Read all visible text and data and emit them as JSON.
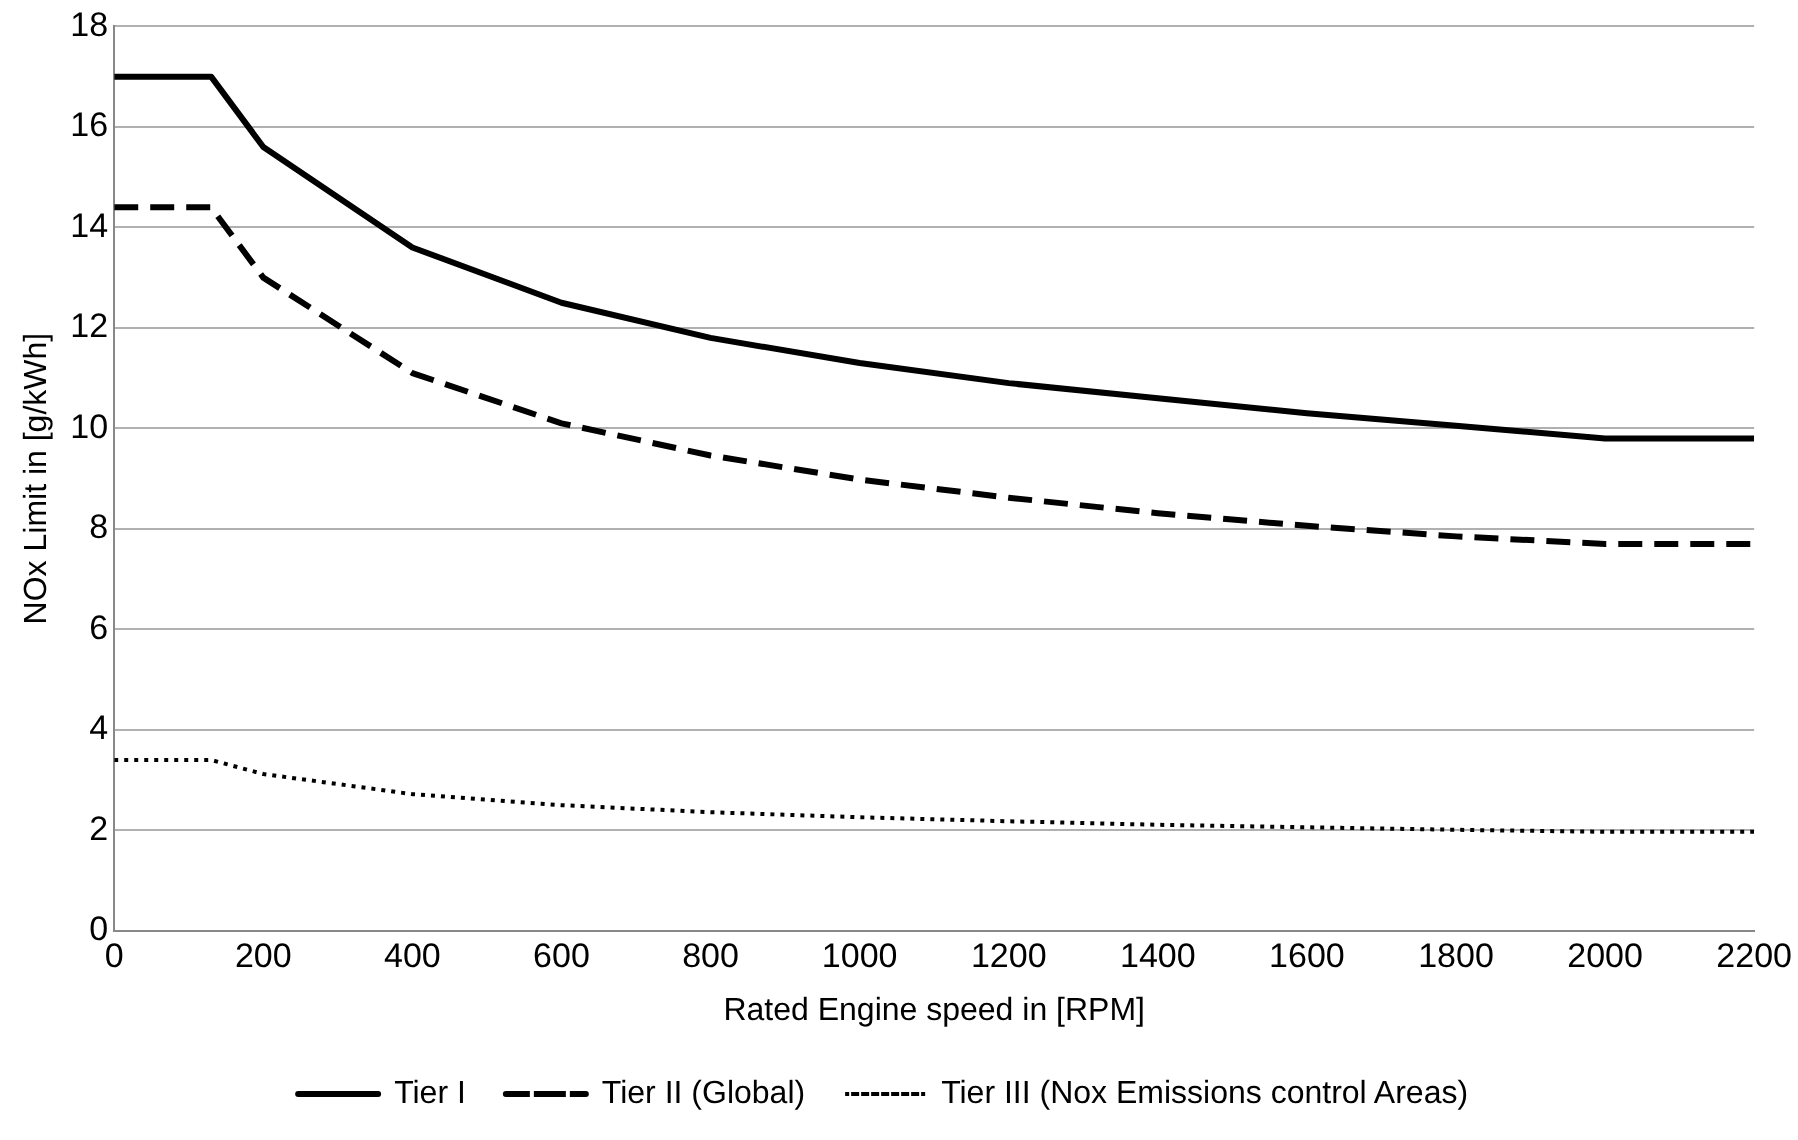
{
  "chart_data": {
    "type": "line",
    "xlabel": "Rated Engine speed in [RPM]",
    "ylabel": "NOx Limit in [g/kWh]",
    "x": [
      0,
      130,
      200,
      400,
      600,
      800,
      1000,
      1200,
      1400,
      1600,
      1800,
      2000,
      2200
    ],
    "series": [
      {
        "name": "Tier I",
        "color": "#000000",
        "line_style": "solid",
        "values": [
          17,
          17,
          15.6,
          13.6,
          12.5,
          11.8,
          11.3,
          10.9,
          10.6,
          10.3,
          10.05,
          9.8,
          9.8
        ]
      },
      {
        "name": "Tier II (Global)",
        "color": "#000000",
        "line_style": "dashed",
        "values": [
          14.4,
          14.4,
          13.0,
          11.1,
          10.1,
          9.46,
          8.98,
          8.62,
          8.31,
          8.06,
          7.85,
          7.7,
          7.7
        ]
      },
      {
        "name": "Tier III (Nox Emissions control Areas)",
        "color": "#000000",
        "line_style": "dotted",
        "values": [
          3.4,
          3.4,
          3.12,
          2.72,
          2.5,
          2.36,
          2.26,
          2.18,
          2.11,
          2.06,
          2.01,
          1.97,
          1.97
        ]
      }
    ],
    "xlim": [
      0,
      2200
    ],
    "xticks": [
      0,
      200,
      400,
      600,
      800,
      1000,
      1200,
      1400,
      1600,
      1800,
      2000,
      2200
    ],
    "ylim": [
      0,
      18
    ],
    "yticks": [
      0,
      2,
      4,
      6,
      8,
      10,
      12,
      14,
      16,
      18
    ],
    "grid": "y",
    "legend": "bottom",
    "marker": "none"
  }
}
